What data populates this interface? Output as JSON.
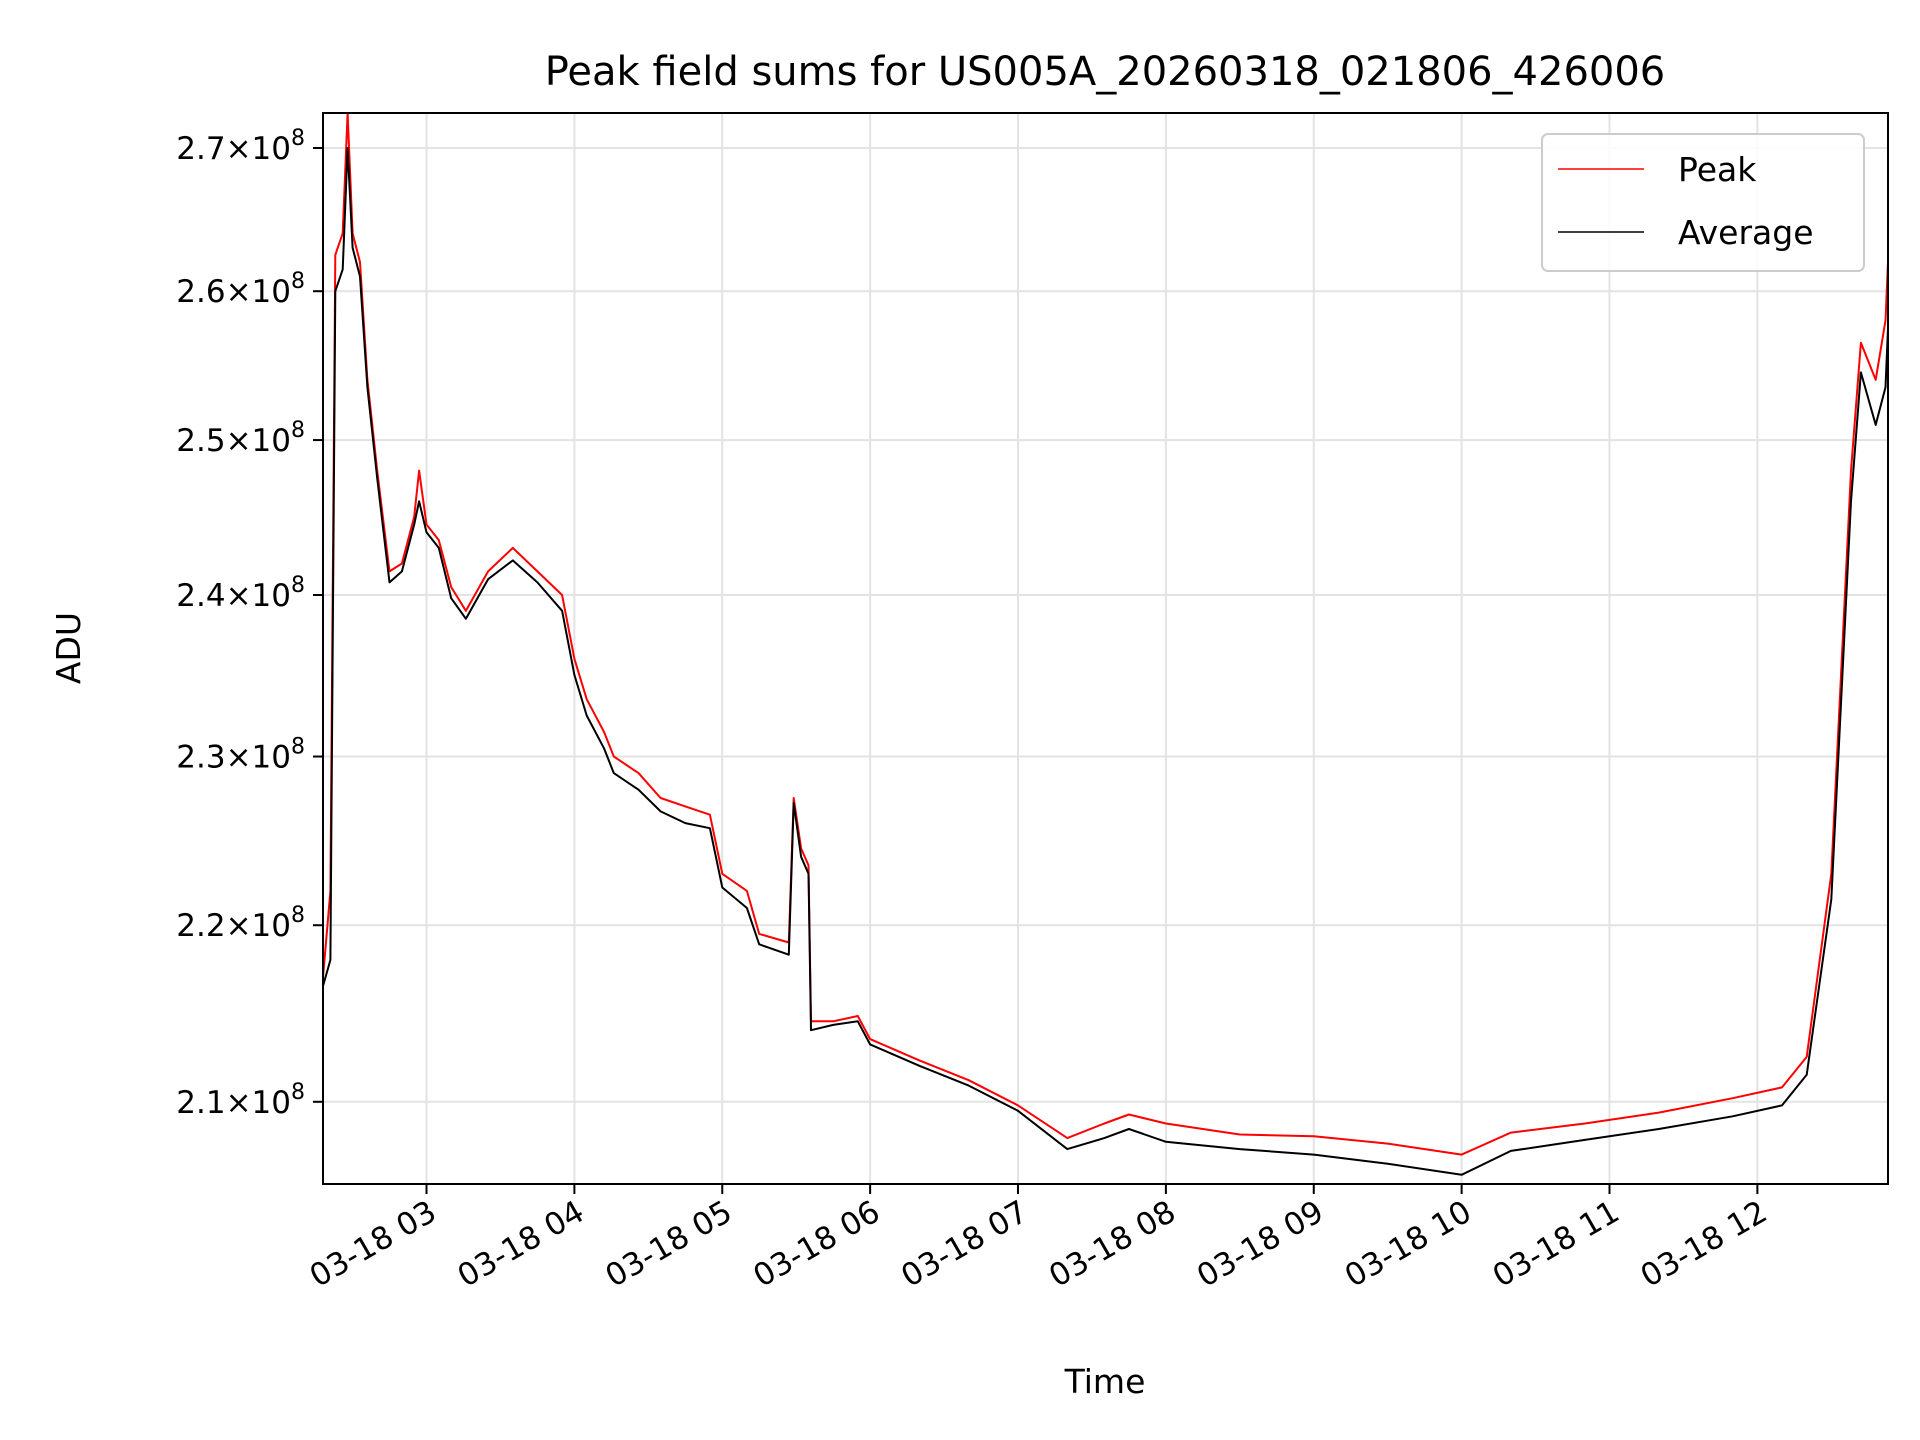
{
  "chart_data": {
    "type": "line",
    "title": "Peak field sums for US005A_20260318_021806_426006",
    "xlabel": "Time",
    "ylabel": "ADU",
    "y_scale": "log",
    "ylim": [
      205500000,
      272500000
    ],
    "xlim": [
      "2026-03-18 02:18",
      "2026-03-18 12:53"
    ],
    "grid": true,
    "legend_position": "top-right",
    "x_ticks": [
      {
        "t": "2026-03-18 03:00",
        "label": "03-18 03"
      },
      {
        "t": "2026-03-18 04:00",
        "label": "03-18 04"
      },
      {
        "t": "2026-03-18 05:00",
        "label": "03-18 05"
      },
      {
        "t": "2026-03-18 06:00",
        "label": "03-18 06"
      },
      {
        "t": "2026-03-18 07:00",
        "label": "03-18 07"
      },
      {
        "t": "2026-03-18 08:00",
        "label": "03-18 08"
      },
      {
        "t": "2026-03-18 09:00",
        "label": "03-18 09"
      },
      {
        "t": "2026-03-18 10:00",
        "label": "03-18 10"
      },
      {
        "t": "2026-03-18 11:00",
        "label": "03-18 11"
      },
      {
        "t": "2026-03-18 12:00",
        "label": "03-18 12"
      }
    ],
    "y_ticks": [
      {
        "value": 210000000,
        "mantissa": "2.1",
        "times": "×",
        "base": "10",
        "exp": "8"
      },
      {
        "value": 220000000,
        "mantissa": "2.2",
        "times": "×",
        "base": "10",
        "exp": "8"
      },
      {
        "value": 230000000,
        "mantissa": "2.3",
        "times": "×",
        "base": "10",
        "exp": "8"
      },
      {
        "value": 240000000,
        "mantissa": "2.4",
        "times": "×",
        "base": "10",
        "exp": "8"
      },
      {
        "value": 250000000,
        "mantissa": "2.5",
        "times": "×",
        "base": "10",
        "exp": "8"
      },
      {
        "value": 260000000,
        "mantissa": "2.6",
        "times": "×",
        "base": "10",
        "exp": "8"
      },
      {
        "value": 270000000,
        "mantissa": "2.7",
        "times": "×",
        "base": "10",
        "exp": "8"
      }
    ],
    "series": [
      {
        "name": "Peak",
        "color": "#ff0000",
        "points": [
          [
            "2026-03-18 02:18",
            217000000
          ],
          [
            "2026-03-18 02:21",
            222000000
          ],
          [
            "2026-03-18 02:23",
            262500000
          ],
          [
            "2026-03-18 02:26",
            264000000
          ],
          [
            "2026-03-18 02:28",
            272500000
          ],
          [
            "2026-03-18 02:30",
            264000000
          ],
          [
            "2026-03-18 02:33",
            262000000
          ],
          [
            "2026-03-18 02:36",
            254000000
          ],
          [
            "2026-03-18 02:40",
            248000000
          ],
          [
            "2026-03-18 02:45",
            241500000
          ],
          [
            "2026-03-18 02:50",
            242000000
          ],
          [
            "2026-03-18 02:55",
            245000000
          ],
          [
            "2026-03-18 02:57",
            248000000
          ],
          [
            "2026-03-18 03:00",
            244500000
          ],
          [
            "2026-03-18 03:05",
            243500000
          ],
          [
            "2026-03-18 03:10",
            240500000
          ],
          [
            "2026-03-18 03:16",
            239000000
          ],
          [
            "2026-03-18 03:25",
            241500000
          ],
          [
            "2026-03-18 03:35",
            243000000
          ],
          [
            "2026-03-18 03:45",
            241500000
          ],
          [
            "2026-03-18 03:55",
            240000000
          ],
          [
            "2026-03-18 04:00",
            236000000
          ],
          [
            "2026-03-18 04:05",
            233500000
          ],
          [
            "2026-03-18 04:12",
            231500000
          ],
          [
            "2026-03-18 04:16",
            230000000
          ],
          [
            "2026-03-18 04:26",
            229000000
          ],
          [
            "2026-03-18 04:35",
            227500000
          ],
          [
            "2026-03-18 04:45",
            227000000
          ],
          [
            "2026-03-18 04:55",
            226500000
          ],
          [
            "2026-03-18 05:00",
            223000000
          ],
          [
            "2026-03-18 05:10",
            222000000
          ],
          [
            "2026-03-18 05:15",
            219500000
          ],
          [
            "2026-03-18 05:27",
            219000000
          ],
          [
            "2026-03-18 05:29",
            227500000
          ],
          [
            "2026-03-18 05:32",
            224500000
          ],
          [
            "2026-03-18 05:35",
            223500000
          ],
          [
            "2026-03-18 05:36",
            214500000
          ],
          [
            "2026-03-18 05:45",
            214500000
          ],
          [
            "2026-03-18 05:55",
            214800000
          ],
          [
            "2026-03-18 06:00",
            213500000
          ],
          [
            "2026-03-18 06:20",
            212300000
          ],
          [
            "2026-03-18 06:40",
            211200000
          ],
          [
            "2026-03-18 07:00",
            209800000
          ],
          [
            "2026-03-18 07:20",
            208000000
          ],
          [
            "2026-03-18 07:35",
            208800000
          ],
          [
            "2026-03-18 07:45",
            209300000
          ],
          [
            "2026-03-18 08:00",
            208800000
          ],
          [
            "2026-03-18 08:30",
            208200000
          ],
          [
            "2026-03-18 09:00",
            208100000
          ],
          [
            "2026-03-18 09:30",
            207700000
          ],
          [
            "2026-03-18 10:00",
            207100000
          ],
          [
            "2026-03-18 10:20",
            208300000
          ],
          [
            "2026-03-18 10:50",
            208800000
          ],
          [
            "2026-03-18 11:20",
            209400000
          ],
          [
            "2026-03-18 11:50",
            210200000
          ],
          [
            "2026-03-18 12:10",
            210800000
          ],
          [
            "2026-03-18 12:20",
            212500000
          ],
          [
            "2026-03-18 12:30",
            223000000
          ],
          [
            "2026-03-18 12:38",
            248000000
          ],
          [
            "2026-03-18 12:42",
            256500000
          ],
          [
            "2026-03-18 12:48",
            254000000
          ],
          [
            "2026-03-18 12:52",
            258000000
          ],
          [
            "2026-03-18 12:53",
            262000000
          ]
        ]
      },
      {
        "name": "Average",
        "color": "#000000",
        "points": [
          [
            "2026-03-18 02:18",
            216500000
          ],
          [
            "2026-03-18 02:21",
            218000000
          ],
          [
            "2026-03-18 02:23",
            260000000
          ],
          [
            "2026-03-18 02:26",
            261500000
          ],
          [
            "2026-03-18 02:28",
            270000000
          ],
          [
            "2026-03-18 02:30",
            263000000
          ],
          [
            "2026-03-18 02:33",
            261000000
          ],
          [
            "2026-03-18 02:36",
            253500000
          ],
          [
            "2026-03-18 02:40",
            247500000
          ],
          [
            "2026-03-18 02:45",
            240800000
          ],
          [
            "2026-03-18 02:50",
            241500000
          ],
          [
            "2026-03-18 02:55",
            244500000
          ],
          [
            "2026-03-18 02:57",
            246000000
          ],
          [
            "2026-03-18 03:00",
            244000000
          ],
          [
            "2026-03-18 03:05",
            243000000
          ],
          [
            "2026-03-18 03:10",
            239800000
          ],
          [
            "2026-03-18 03:16",
            238500000
          ],
          [
            "2026-03-18 03:25",
            241000000
          ],
          [
            "2026-03-18 03:35",
            242200000
          ],
          [
            "2026-03-18 03:45",
            240800000
          ],
          [
            "2026-03-18 03:55",
            239000000
          ],
          [
            "2026-03-18 04:00",
            235000000
          ],
          [
            "2026-03-18 04:05",
            232500000
          ],
          [
            "2026-03-18 04:12",
            230500000
          ],
          [
            "2026-03-18 04:16",
            229000000
          ],
          [
            "2026-03-18 04:26",
            228000000
          ],
          [
            "2026-03-18 04:35",
            226700000
          ],
          [
            "2026-03-18 04:45",
            226000000
          ],
          [
            "2026-03-18 04:55",
            225700000
          ],
          [
            "2026-03-18 05:00",
            222200000
          ],
          [
            "2026-03-18 05:10",
            221000000
          ],
          [
            "2026-03-18 05:15",
            218900000
          ],
          [
            "2026-03-18 05:27",
            218300000
          ],
          [
            "2026-03-18 05:29",
            227200000
          ],
          [
            "2026-03-18 05:32",
            224000000
          ],
          [
            "2026-03-18 05:35",
            223000000
          ],
          [
            "2026-03-18 05:36",
            214000000
          ],
          [
            "2026-03-18 05:45",
            214300000
          ],
          [
            "2026-03-18 05:55",
            214500000
          ],
          [
            "2026-03-18 06:00",
            213200000
          ],
          [
            "2026-03-18 06:20",
            212000000
          ],
          [
            "2026-03-18 06:40",
            210900000
          ],
          [
            "2026-03-18 07:00",
            209500000
          ],
          [
            "2026-03-18 07:20",
            207400000
          ],
          [
            "2026-03-18 07:35",
            208000000
          ],
          [
            "2026-03-18 07:45",
            208500000
          ],
          [
            "2026-03-18 08:00",
            207800000
          ],
          [
            "2026-03-18 08:30",
            207400000
          ],
          [
            "2026-03-18 09:00",
            207100000
          ],
          [
            "2026-03-18 09:30",
            206600000
          ],
          [
            "2026-03-18 10:00",
            206000000
          ],
          [
            "2026-03-18 10:20",
            207300000
          ],
          [
            "2026-03-18 10:50",
            207900000
          ],
          [
            "2026-03-18 11:20",
            208500000
          ],
          [
            "2026-03-18 11:50",
            209200000
          ],
          [
            "2026-03-18 12:10",
            209800000
          ],
          [
            "2026-03-18 12:20",
            211500000
          ],
          [
            "2026-03-18 12:30",
            221500000
          ],
          [
            "2026-03-18 12:38",
            246000000
          ],
          [
            "2026-03-18 12:42",
            254500000
          ],
          [
            "2026-03-18 12:48",
            251000000
          ],
          [
            "2026-03-18 12:52",
            253500000
          ],
          [
            "2026-03-18 12:53",
            257500000
          ]
        ]
      }
    ]
  }
}
